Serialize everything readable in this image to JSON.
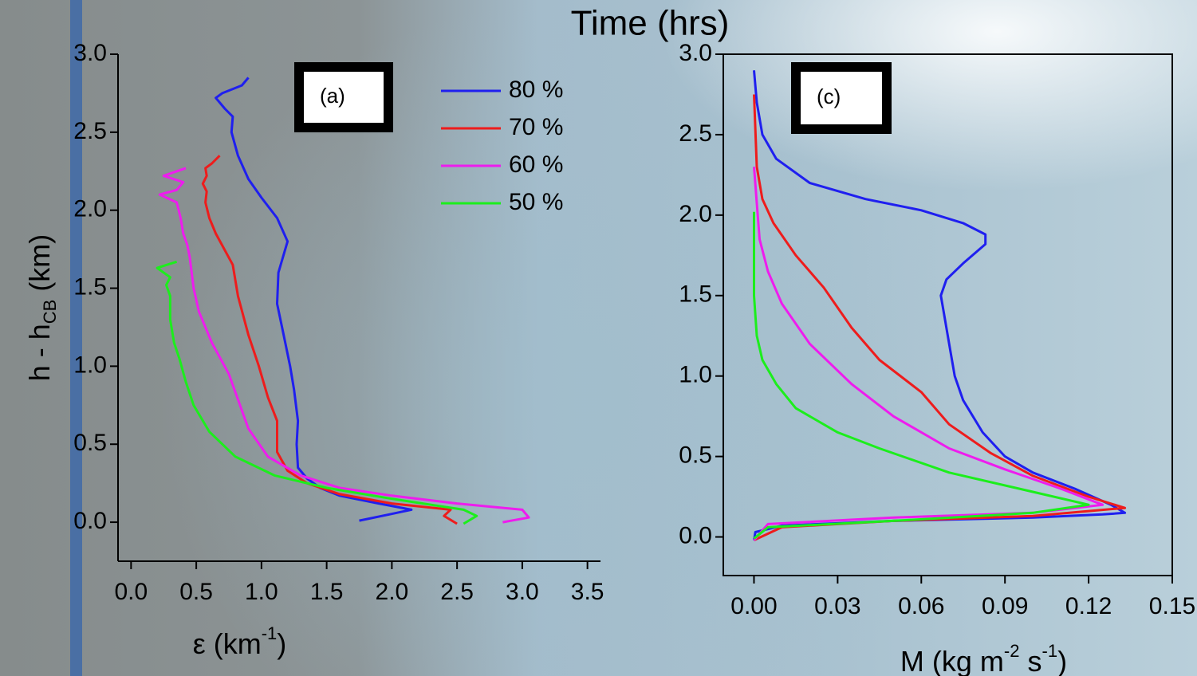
{
  "title": "Time (hrs)",
  "chart_data": [
    {
      "type": "line",
      "annotation": "(a)",
      "x_label": [
        "ε (km",
        "-1",
        ")"
      ],
      "y_label": [
        "h - h",
        "CB",
        " (km)"
      ],
      "xlim": [
        -0.1,
        3.6
      ],
      "ylim": [
        -0.25,
        3.0
      ],
      "xticks": [
        {
          "value": 0,
          "label": "0.0"
        },
        0.5,
        {
          "value": 1,
          "label": "1.0"
        },
        1.5,
        {
          "value": 2,
          "label": "2.0"
        },
        2.5,
        {
          "value": 3,
          "label": "3.0"
        },
        3.5
      ],
      "yticks": [
        {
          "value": 0,
          "label": "0.0"
        },
        0.5,
        {
          "value": 1,
          "label": "1.0"
        },
        1.5,
        {
          "value": 2,
          "label": "2.0"
        },
        2.5,
        {
          "value": 3,
          "label": "3.0"
        }
      ],
      "legend": "top-right",
      "series": [
        {
          "name": "80 %",
          "color": "#1f1fef",
          "x": [
            1.75,
            1.98,
            2.15,
            1.9,
            1.6,
            1.45,
            1.35,
            1.28,
            1.27,
            1.28,
            1.25,
            1.22,
            1.17,
            1.12,
            1.13,
            1.2,
            1.12,
            1.0,
            0.9,
            0.82,
            0.77,
            0.78,
            0.72,
            0.65,
            0.7,
            0.85,
            0.9
          ],
          "y": [
            0.01,
            0.05,
            0.08,
            0.12,
            0.17,
            0.22,
            0.28,
            0.35,
            0.5,
            0.65,
            0.85,
            1.0,
            1.2,
            1.4,
            1.6,
            1.8,
            1.95,
            2.08,
            2.2,
            2.35,
            2.5,
            2.6,
            2.65,
            2.72,
            2.75,
            2.8,
            2.85
          ]
        },
        {
          "name": "70 %",
          "color": "#ee1c1c",
          "x": [
            2.5,
            2.4,
            2.45,
            2.0,
            1.6,
            1.35,
            1.2,
            1.12,
            1.12,
            1.05,
            0.98,
            0.9,
            0.82,
            0.78,
            0.65,
            0.6,
            0.57,
            0.58,
            0.55,
            0.58,
            0.57,
            0.62,
            0.68
          ],
          "y": [
            -0.01,
            0.04,
            0.08,
            0.12,
            0.18,
            0.25,
            0.33,
            0.45,
            0.65,
            0.8,
            1.0,
            1.2,
            1.45,
            1.65,
            1.85,
            1.95,
            2.05,
            2.12,
            2.17,
            2.22,
            2.27,
            2.3,
            2.35
          ]
        },
        {
          "name": "60 %",
          "color": "#ee1cee",
          "x": [
            2.85,
            3.05,
            3.0,
            2.5,
            2.0,
            1.6,
            1.3,
            1.05,
            0.9,
            0.75,
            0.62,
            0.52,
            0.48,
            0.45,
            0.43,
            0.4,
            0.38,
            0.35,
            0.22,
            0.35,
            0.4,
            0.25,
            0.42
          ],
          "y": [
            0.0,
            0.03,
            0.08,
            0.12,
            0.17,
            0.22,
            0.3,
            0.42,
            0.6,
            0.95,
            1.15,
            1.35,
            1.5,
            1.7,
            1.78,
            1.85,
            1.95,
            2.05,
            2.1,
            2.13,
            2.18,
            2.22,
            2.27
          ]
        },
        {
          "name": "50 %",
          "color": "#1cee1c",
          "x": [
            2.55,
            2.65,
            2.55,
            2.0,
            1.5,
            1.1,
            0.8,
            0.6,
            0.48,
            0.42,
            0.37,
            0.33,
            0.3,
            0.3,
            0.27,
            0.3,
            0.2,
            0.35
          ],
          "y": [
            -0.01,
            0.04,
            0.08,
            0.15,
            0.22,
            0.3,
            0.42,
            0.58,
            0.75,
            0.9,
            1.05,
            1.15,
            1.3,
            1.45,
            1.52,
            1.57,
            1.63,
            1.67
          ]
        }
      ]
    },
    {
      "type": "line",
      "annotation": "(c)",
      "x_label": [
        "M (kg m",
        "-2",
        " s",
        "-1",
        ")"
      ],
      "xlim": [
        -0.011,
        0.15
      ],
      "ylim": [
        -0.24,
        3.0
      ],
      "xticks": [
        {
          "value": 0,
          "label": "0.00"
        },
        0.03,
        0.06,
        0.09,
        0.12,
        0.15
      ],
      "yticks": [
        {
          "value": 0,
          "label": "0.0"
        },
        0.5,
        {
          "value": 1,
          "label": "1.0"
        },
        1.5,
        {
          "value": 2,
          "label": "2.0"
        },
        2.5,
        {
          "value": 3,
          "label": "3.0"
        }
      ],
      "frame": true,
      "series": [
        {
          "color": "#1f1fef",
          "x": [
            0,
            0.0005,
            0.01,
            0.05,
            0.1,
            0.125,
            0.133,
            0.128,
            0.115,
            0.1,
            0.09,
            0.082,
            0.075,
            0.072,
            0.07,
            0.068,
            0.067,
            0.069,
            0.075,
            0.083,
            0.083,
            0.075,
            0.06,
            0.04,
            0.02,
            0.008,
            0.003,
            0.001,
            0
          ],
          "y": [
            -0.02,
            0.03,
            0.07,
            0.1,
            0.12,
            0.14,
            0.15,
            0.2,
            0.3,
            0.4,
            0.5,
            0.65,
            0.85,
            1.0,
            1.2,
            1.4,
            1.5,
            1.6,
            1.7,
            1.82,
            1.88,
            1.95,
            2.03,
            2.1,
            2.2,
            2.35,
            2.5,
            2.7,
            2.9
          ]
        },
        {
          "color": "#ee1c1c",
          "x": [
            0,
            0.01,
            0.05,
            0.1,
            0.133,
            0.12,
            0.1,
            0.085,
            0.07,
            0.06,
            0.045,
            0.035,
            0.025,
            0.015,
            0.007,
            0.003,
            0.001,
            0
          ],
          "y": [
            -0.02,
            0.06,
            0.1,
            0.13,
            0.18,
            0.25,
            0.38,
            0.52,
            0.7,
            0.9,
            1.1,
            1.3,
            1.55,
            1.75,
            1.95,
            2.1,
            2.3,
            2.75
          ]
        },
        {
          "color": "#ee1cee",
          "x": [
            0,
            0.005,
            0.05,
            0.1,
            0.125,
            0.11,
            0.09,
            0.07,
            0.05,
            0.035,
            0.02,
            0.01,
            0.005,
            0.002,
            0
          ],
          "y": [
            -0.02,
            0.08,
            0.12,
            0.15,
            0.2,
            0.3,
            0.42,
            0.55,
            0.75,
            0.95,
            1.2,
            1.45,
            1.65,
            1.85,
            2.3
          ]
        },
        {
          "color": "#1cee1c",
          "x": [
            0,
            0.005,
            0.05,
            0.1,
            0.12,
            0.1,
            0.07,
            0.045,
            0.03,
            0.015,
            0.008,
            0.003,
            0.001,
            0,
            0
          ],
          "y": [
            -0.01,
            0.06,
            0.1,
            0.15,
            0.2,
            0.28,
            0.4,
            0.55,
            0.65,
            0.8,
            0.95,
            1.1,
            1.25,
            1.5,
            2.02
          ]
        }
      ]
    }
  ]
}
